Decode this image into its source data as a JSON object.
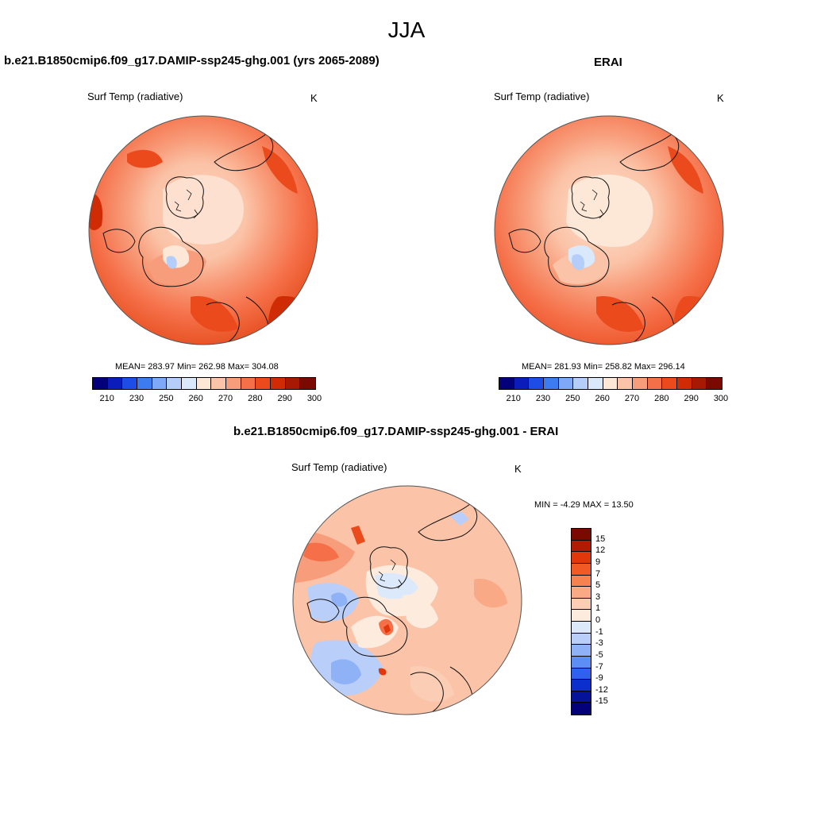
{
  "figure": {
    "title": "JJA",
    "panels": [
      {
        "title": "b.e21.B1850cmip6.f09_g17.DAMIP-ssp245-ghg.001 (yrs 2065-2089)",
        "variable": "Surf Temp (radiative)",
        "units": "K",
        "stats": "MEAN= 283.97  Min= 262.98  Max= 304.08"
      },
      {
        "title": "ERAI",
        "variable": "Surf Temp (radiative)",
        "units": "K",
        "stats": "MEAN= 281.93  Min= 258.82  Max= 296.14"
      },
      {
        "title": "b.e21.B1850cmip6.f09_g17.DAMIP-ssp245-ghg.001 - ERAI",
        "variable": "Surf Temp (radiative)",
        "units": "K",
        "stats": "MIN =  -4.29 MAX =  13.50"
      }
    ]
  },
  "colorbar_abs": {
    "colors": [
      "#04007a",
      "#0a1cba",
      "#1e4de6",
      "#3d7bf2",
      "#7fa9f8",
      "#b4cdf9",
      "#d9e8fb",
      "#fde8d8",
      "#fbc3a7",
      "#f89d7b",
      "#f56f48",
      "#ea4a1c",
      "#cf2c06",
      "#a81903",
      "#7a0900"
    ],
    "labels": [
      "210",
      "230",
      "250",
      "260",
      "270",
      "280",
      "290",
      "300"
    ]
  },
  "colorbar_diff": {
    "colors": [
      "#7a0900",
      "#b31a03",
      "#e0380b",
      "#f25a25",
      "#f6834f",
      "#f9a985",
      "#fbcdb5",
      "#fdebde",
      "#dce9fb",
      "#b9cff9",
      "#8fb2f7",
      "#5d8ef5",
      "#2e62ee",
      "#0a2fcc",
      "#05139a",
      "#04007a"
    ],
    "labels": [
      "15",
      "12",
      "9",
      "7",
      "5",
      "3",
      "1",
      "0",
      "-1",
      "-3",
      "-5",
      "-7",
      "-9",
      "-12",
      "-15"
    ]
  }
}
